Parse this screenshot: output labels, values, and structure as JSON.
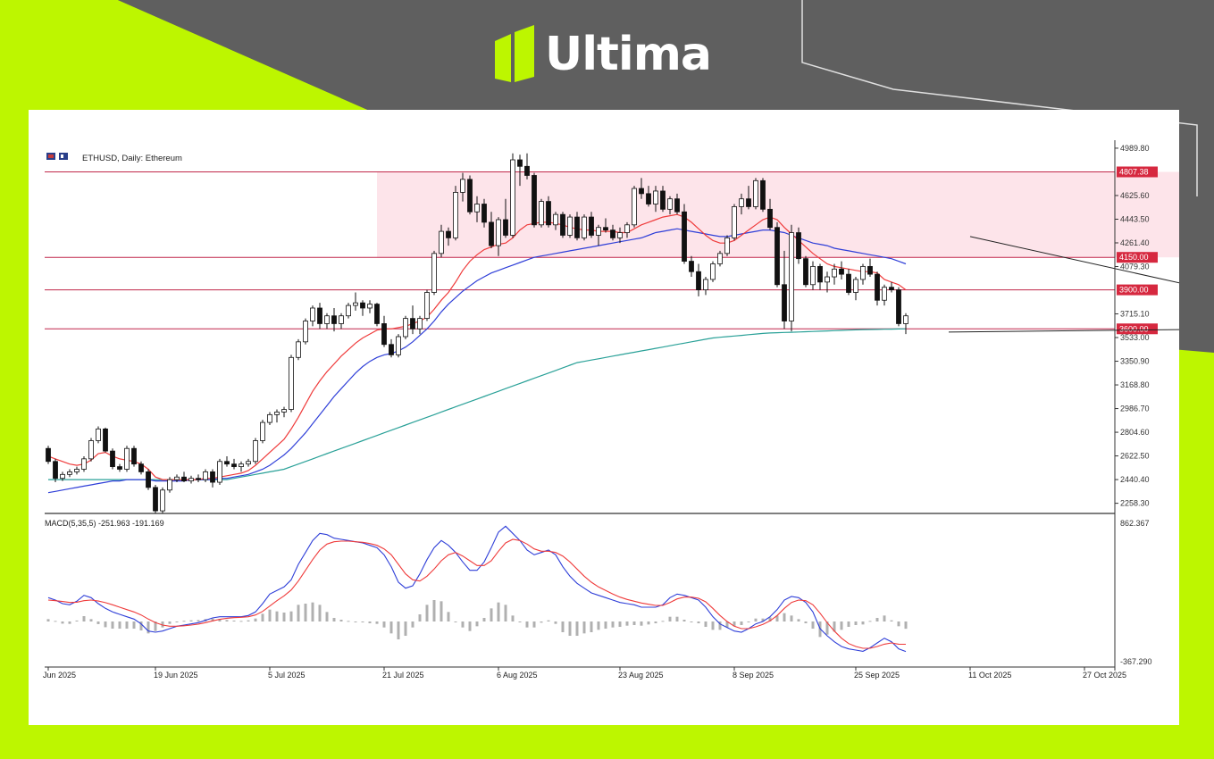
{
  "brand": {
    "name": "Ultima",
    "accent": "#bdf600",
    "background": "#5f5f5f"
  },
  "chart_data": {
    "type": "candlestick",
    "symbol_label": "ETHUSD, Daily:  Ethereum",
    "y_ticks": [
      "4989.80",
      "4625.60",
      "4443.50",
      "4261.40",
      "4079.30",
      "3715.10",
      "3533.00",
      "3350.90",
      "3168.80",
      "2986.70",
      "2804.60",
      "2622.50",
      "2440.40",
      "2258.30"
    ],
    "y_tick_values": [
      4989.8,
      4625.6,
      4443.5,
      4261.4,
      4079.3,
      3715.1,
      3533.0,
      3350.9,
      3168.8,
      2986.7,
      2804.6,
      2622.5,
      2440.4,
      2258.3
    ],
    "ylim": [
      2180,
      5010
    ],
    "levels": [
      {
        "value": 4807.38,
        "label": "4807.38"
      },
      {
        "value": 4150.0,
        "label": "4150.00"
      },
      {
        "value": 3900.0,
        "label": "3900.00"
      },
      {
        "value": 3600.0,
        "label": "3600.00"
      }
    ],
    "x_labels": [
      "Jun 2025",
      "19 Jun 2025",
      "5 Jul 2025",
      "21 Jul 2025",
      "6 Aug 2025",
      "23 Aug 2025",
      "8 Sep 2025",
      "25 Sep 2025",
      "11 Oct 2025",
      "27 Oct 2025"
    ],
    "x_label_bars": [
      0,
      15,
      31,
      47,
      63,
      80,
      96,
      113,
      129,
      145
    ],
    "zone": {
      "from_bar": 46,
      "to_bar": 166,
      "low": 4150,
      "high": 4807.38
    },
    "trendlines": [
      {
        "from": [
          129,
          4310
        ],
        "to": [
          168,
          3835
        ]
      },
      {
        "from": [
          126,
          3575
        ],
        "to": [
          168,
          3600
        ]
      }
    ],
    "ohlc": [
      [
        2680,
        2700,
        2560,
        2580
      ],
      [
        2580,
        2600,
        2420,
        2450
      ],
      [
        2450,
        2500,
        2430,
        2480
      ],
      [
        2480,
        2520,
        2460,
        2500
      ],
      [
        2500,
        2540,
        2480,
        2520
      ],
      [
        2520,
        2620,
        2500,
        2600
      ],
      [
        2600,
        2760,
        2580,
        2740
      ],
      [
        2740,
        2850,
        2720,
        2830
      ],
      [
        2830,
        2840,
        2650,
        2660
      ],
      [
        2660,
        2680,
        2520,
        2540
      ],
      [
        2540,
        2560,
        2500,
        2520
      ],
      [
        2520,
        2700,
        2500,
        2680
      ],
      [
        2680,
        2700,
        2540,
        2560
      ],
      [
        2560,
        2580,
        2480,
        2500
      ],
      [
        2500,
        2520,
        2360,
        2380
      ],
      [
        2380,
        2400,
        2180,
        2200
      ],
      [
        2200,
        2380,
        2180,
        2360
      ],
      [
        2360,
        2460,
        2340,
        2440
      ],
      [
        2440,
        2480,
        2420,
        2460
      ],
      [
        2460,
        2500,
        2420,
        2430
      ],
      [
        2430,
        2470,
        2410,
        2450
      ],
      [
        2450,
        2480,
        2420,
        2440
      ],
      [
        2440,
        2520,
        2420,
        2500
      ],
      [
        2500,
        2520,
        2380,
        2420
      ],
      [
        2420,
        2600,
        2400,
        2580
      ],
      [
        2580,
        2620,
        2540,
        2560
      ],
      [
        2560,
        2600,
        2520,
        2540
      ],
      [
        2540,
        2580,
        2500,
        2560
      ],
      [
        2560,
        2600,
        2540,
        2580
      ],
      [
        2580,
        2760,
        2560,
        2740
      ],
      [
        2740,
        2900,
        2720,
        2880
      ],
      [
        2880,
        2960,
        2860,
        2940
      ],
      [
        2940,
        2980,
        2880,
        2960
      ],
      [
        2960,
        3000,
        2920,
        2980
      ],
      [
        2980,
        3400,
        2960,
        3380
      ],
      [
        3380,
        3520,
        3360,
        3500
      ],
      [
        3500,
        3680,
        3480,
        3660
      ],
      [
        3660,
        3780,
        3620,
        3760
      ],
      [
        3760,
        3800,
        3600,
        3640
      ],
      [
        3640,
        3720,
        3600,
        3700
      ],
      [
        3700,
        3760,
        3580,
        3640
      ],
      [
        3640,
        3720,
        3600,
        3700
      ],
      [
        3700,
        3800,
        3680,
        3780
      ],
      [
        3780,
        3880,
        3740,
        3800
      ],
      [
        3800,
        3820,
        3700,
        3760
      ],
      [
        3760,
        3820,
        3720,
        3790
      ],
      [
        3790,
        3800,
        3620,
        3640
      ],
      [
        3640,
        3700,
        3460,
        3480
      ],
      [
        3480,
        3520,
        3380,
        3400
      ],
      [
        3400,
        3560,
        3380,
        3540
      ],
      [
        3540,
        3700,
        3520,
        3680
      ],
      [
        3680,
        3780,
        3560,
        3600
      ],
      [
        3600,
        3700,
        3560,
        3680
      ],
      [
        3680,
        3900,
        3660,
        3880
      ],
      [
        3880,
        4200,
        3860,
        4180
      ],
      [
        4180,
        4400,
        4150,
        4350
      ],
      [
        4350,
        4380,
        4240,
        4300
      ],
      [
        4300,
        4700,
        4280,
        4650
      ],
      [
        4650,
        4800,
        4580,
        4750
      ],
      [
        4750,
        4780,
        4480,
        4500
      ],
      [
        4500,
        4620,
        4420,
        4560
      ],
      [
        4560,
        4600,
        4380,
        4420
      ],
      [
        4420,
        4500,
        4220,
        4240
      ],
      [
        4240,
        4460,
        4160,
        4440
      ],
      [
        4440,
        4600,
        4300,
        4320
      ],
      [
        4320,
        4950,
        4300,
        4900
      ],
      [
        4900,
        4940,
        4700,
        4850
      ],
      [
        4850,
        4950,
        4750,
        4780
      ],
      [
        4780,
        4800,
        4380,
        4400
      ],
      [
        4400,
        4600,
        4380,
        4580
      ],
      [
        4580,
        4620,
        4380,
        4400
      ],
      [
        4400,
        4500,
        4360,
        4480
      ],
      [
        4480,
        4500,
        4300,
        4320
      ],
      [
        4320,
        4480,
        4300,
        4460
      ],
      [
        4460,
        4500,
        4280,
        4300
      ],
      [
        4300,
        4480,
        4280,
        4460
      ],
      [
        4460,
        4500,
        4300,
        4320
      ],
      [
        4320,
        4400,
        4240,
        4380
      ],
      [
        4380,
        4450,
        4340,
        4360
      ],
      [
        4360,
        4400,
        4280,
        4300
      ],
      [
        4300,
        4380,
        4260,
        4340
      ],
      [
        4340,
        4420,
        4300,
        4400
      ],
      [
        4400,
        4700,
        4380,
        4680
      ],
      [
        4680,
        4760,
        4600,
        4640
      ],
      [
        4640,
        4700,
        4540,
        4560
      ],
      [
        4560,
        4700,
        4500,
        4660
      ],
      [
        4660,
        4700,
        4500,
        4520
      ],
      [
        4520,
        4620,
        4480,
        4600
      ],
      [
        4600,
        4640,
        4480,
        4500
      ],
      [
        4500,
        4560,
        4100,
        4120
      ],
      [
        4120,
        4160,
        4000,
        4040
      ],
      [
        4040,
        4100,
        3850,
        3900
      ],
      [
        3900,
        4000,
        3860,
        3980
      ],
      [
        3980,
        4120,
        3960,
        4100
      ],
      [
        4100,
        4200,
        4080,
        4180
      ],
      [
        4180,
        4320,
        4160,
        4300
      ],
      [
        4300,
        4560,
        4280,
        4540
      ],
      [
        4540,
        4640,
        4480,
        4600
      ],
      [
        4600,
        4700,
        4520,
        4540
      ],
      [
        4540,
        4760,
        4520,
        4740
      ],
      [
        4740,
        4760,
        4500,
        4520
      ],
      [
        4520,
        4600,
        4360,
        4380
      ],
      [
        4380,
        4420,
        3920,
        3940
      ],
      [
        3940,
        4200,
        3600,
        3660
      ],
      [
        3660,
        4400,
        3580,
        4340
      ],
      [
        4340,
        4380,
        4100,
        4140
      ],
      [
        4140,
        4160,
        3920,
        3940
      ],
      [
        3940,
        4120,
        3900,
        4080
      ],
      [
        4080,
        4100,
        3900,
        3960
      ],
      [
        3960,
        4040,
        3880,
        4000
      ],
      [
        4000,
        4100,
        3940,
        4060
      ],
      [
        4060,
        4120,
        3980,
        4020
      ],
      [
        4020,
        4060,
        3860,
        3880
      ],
      [
        3880,
        4000,
        3820,
        3980
      ],
      [
        3980,
        4100,
        3940,
        4080
      ],
      [
        4080,
        4140,
        4000,
        4020
      ],
      [
        4020,
        4040,
        3780,
        3820
      ],
      [
        3820,
        3940,
        3780,
        3920
      ],
      [
        3920,
        3960,
        3880,
        3900
      ],
      [
        3900,
        3920,
        3620,
        3640
      ],
      [
        3640,
        3720,
        3560,
        3700
      ]
    ],
    "ma_fast": [
      2620,
      2600,
      2580,
      2560,
      2550,
      2560,
      2590,
      2640,
      2650,
      2620,
      2600,
      2590,
      2580,
      2560,
      2520,
      2460,
      2440,
      2440,
      2440,
      2440,
      2440,
      2440,
      2450,
      2450,
      2460,
      2470,
      2480,
      2490,
      2510,
      2550,
      2600,
      2650,
      2700,
      2750,
      2830,
      2920,
      3020,
      3120,
      3200,
      3270,
      3330,
      3390,
      3440,
      3490,
      3530,
      3560,
      3590,
      3600,
      3600,
      3610,
      3620,
      3640,
      3660,
      3690,
      3750,
      3820,
      3880,
      3960,
      4050,
      4120,
      4170,
      4210,
      4230,
      4250,
      4260,
      4300,
      4360,
      4400,
      4410,
      4420,
      4420,
      4410,
      4400,
      4380,
      4370,
      4360,
      4360,
      4350,
      4350,
      4350,
      4340,
      4340,
      4370,
      4400,
      4420,
      4440,
      4460,
      4470,
      4480,
      4460,
      4420,
      4370,
      4320,
      4280,
      4260,
      4260,
      4280,
      4320,
      4360,
      4400,
      4440,
      4460,
      4440,
      4380,
      4330,
      4280,
      4230,
      4180,
      4140,
      4100,
      4080,
      4070,
      4060,
      4050,
      4040,
      4040,
      4030,
      3980,
      3960,
      3940,
      3900
    ],
    "ma_mid": [
      2340,
      2350,
      2360,
      2370,
      2380,
      2390,
      2400,
      2410,
      2420,
      2430,
      2430,
      2440,
      2440,
      2440,
      2440,
      2430,
      2430,
      2430,
      2430,
      2430,
      2440,
      2440,
      2440,
      2440,
      2450,
      2450,
      2460,
      2470,
      2480,
      2500,
      2520,
      2550,
      2590,
      2630,
      2680,
      2740,
      2800,
      2870,
      2940,
      3010,
      3080,
      3140,
      3200,
      3260,
      3310,
      3350,
      3380,
      3400,
      3410,
      3430,
      3460,
      3500,
      3550,
      3600,
      3660,
      3730,
      3790,
      3840,
      3890,
      3930,
      3970,
      4000,
      4030,
      4050,
      4070,
      4090,
      4110,
      4130,
      4150,
      4160,
      4170,
      4180,
      4190,
      4200,
      4210,
      4220,
      4230,
      4240,
      4250,
      4260,
      4270,
      4280,
      4290,
      4300,
      4320,
      4340,
      4350,
      4360,
      4370,
      4360,
      4350,
      4340,
      4330,
      4320,
      4310,
      4310,
      4320,
      4330,
      4340,
      4350,
      4360,
      4360,
      4350,
      4340,
      4320,
      4300,
      4280,
      4260,
      4250,
      4240,
      4220,
      4210,
      4200,
      4190,
      4180,
      4170,
      4160,
      4150,
      4140,
      4120,
      4100
    ],
    "ma_slow": [
      2440,
      2440,
      2440,
      2440,
      2440,
      2440,
      2440,
      2440,
      2440,
      2440,
      2440,
      2440,
      2440,
      2440,
      2440,
      2440,
      2440,
      2440,
      2440,
      2440,
      2440,
      2440,
      2440,
      2440,
      2440,
      2440,
      2450,
      2460,
      2470,
      2480,
      2490,
      2500,
      2510,
      2520,
      2540,
      2560,
      2580,
      2600,
      2620,
      2640,
      2660,
      2680,
      2700,
      2720,
      2740,
      2760,
      2780,
      2800,
      2820,
      2840,
      2860,
      2880,
      2900,
      2920,
      2940,
      2960,
      2980,
      3000,
      3020,
      3040,
      3060,
      3080,
      3100,
      3120,
      3140,
      3160,
      3180,
      3200,
      3220,
      3240,
      3260,
      3280,
      3300,
      3320,
      3340,
      3350,
      3360,
      3370,
      3380,
      3390,
      3400,
      3410,
      3420,
      3430,
      3440,
      3450,
      3460,
      3470,
      3480,
      3490,
      3500,
      3510,
      3520,
      3530,
      3535,
      3540,
      3545,
      3550,
      3555,
      3560,
      3565,
      3568,
      3570,
      3572,
      3574,
      3576,
      3578,
      3580,
      3582,
      3584,
      3586,
      3588,
      3590,
      3592,
      3594,
      3595,
      3596,
      3597,
      3598,
      3599,
      3600
    ],
    "macd": {
      "label": "MACD(5,35,5) -251.963 -191.169",
      "top_label": "862.367",
      "bottom_label": "-367.290",
      "ylim": [
        -367.29,
        862.367
      ],
      "line": [
        200,
        180,
        150,
        140,
        170,
        220,
        200,
        150,
        110,
        80,
        60,
        40,
        20,
        -20,
        -80,
        -90,
        -80,
        -60,
        -40,
        -30,
        -20,
        -10,
        10,
        30,
        40,
        40,
        40,
        40,
        50,
        80,
        150,
        230,
        260,
        290,
        350,
        480,
        580,
        680,
        740,
        730,
        700,
        690,
        680,
        670,
        660,
        640,
        620,
        560,
        460,
        330,
        280,
        300,
        400,
        520,
        620,
        680,
        640,
        580,
        500,
        430,
        430,
        500,
        620,
        750,
        800,
        740,
        680,
        600,
        560,
        580,
        600,
        560,
        460,
        380,
        320,
        280,
        240,
        220,
        200,
        180,
        160,
        150,
        140,
        120,
        120,
        120,
        140,
        200,
        230,
        220,
        200,
        180,
        120,
        40,
        -20,
        -50,
        -80,
        -90,
        -60,
        -20,
        0,
        40,
        100,
        180,
        210,
        200,
        160,
        80,
        -60,
        -120,
        -170,
        -210,
        -230,
        -240,
        -250,
        -220,
        -180,
        -140,
        -170,
        -230,
        -252
      ],
      "signal": [
        180,
        175,
        168,
        160,
        162,
        175,
        180,
        172,
        158,
        140,
        120,
        100,
        80,
        55,
        20,
        -10,
        -30,
        -40,
        -40,
        -36,
        -30,
        -22,
        -10,
        5,
        18,
        27,
        32,
        35,
        40,
        55,
        85,
        130,
        175,
        215,
        265,
        340,
        430,
        520,
        600,
        650,
        670,
        675,
        675,
        670,
        665,
        655,
        640,
        610,
        560,
        480,
        400,
        350,
        340,
        380,
        440,
        510,
        560,
        580,
        550,
        510,
        470,
        470,
        510,
        590,
        660,
        690,
        680,
        650,
        610,
        590,
        590,
        580,
        550,
        500,
        440,
        380,
        330,
        290,
        260,
        230,
        205,
        185,
        170,
        155,
        145,
        135,
        135,
        160,
        190,
        205,
        205,
        195,
        165,
        110,
        50,
        0,
        -40,
        -60,
        -60,
        -45,
        -25,
        5,
        50,
        110,
        160,
        180,
        175,
        140,
        70,
        -10,
        -80,
        -140,
        -185,
        -210,
        -225,
        -225,
        -210,
        -190,
        -180,
        -190,
        -191
      ],
      "hist": [
        20,
        5,
        -18,
        -20,
        8,
        45,
        20,
        -22,
        -48,
        -60,
        -60,
        -60,
        -60,
        -75,
        -100,
        -80,
        -50,
        -20,
        0,
        6,
        10,
        12,
        20,
        25,
        22,
        13,
        8,
        5,
        10,
        25,
        65,
        100,
        85,
        75,
        85,
        140,
        150,
        160,
        140,
        80,
        30,
        15,
        5,
        0,
        -5,
        -15,
        -20,
        -50,
        -100,
        -150,
        -120,
        -50,
        60,
        140,
        180,
        170,
        80,
        0,
        -50,
        -80,
        -40,
        30,
        110,
        160,
        140,
        50,
        0,
        -50,
        -50,
        -10,
        10,
        -20,
        -90,
        -120,
        -120,
        -100,
        -90,
        -70,
        -60,
        -50,
        -45,
        -35,
        -30,
        -35,
        -25,
        -15,
        5,
        40,
        40,
        15,
        -5,
        -15,
        -45,
        -70,
        -70,
        -50,
        -40,
        -30,
        0,
        25,
        25,
        35,
        50,
        70,
        50,
        20,
        -15,
        -60,
        -130,
        -110,
        -85,
        -70,
        -45,
        -30,
        -25,
        5,
        30,
        50,
        10,
        -40,
        -61
      ]
    }
  }
}
